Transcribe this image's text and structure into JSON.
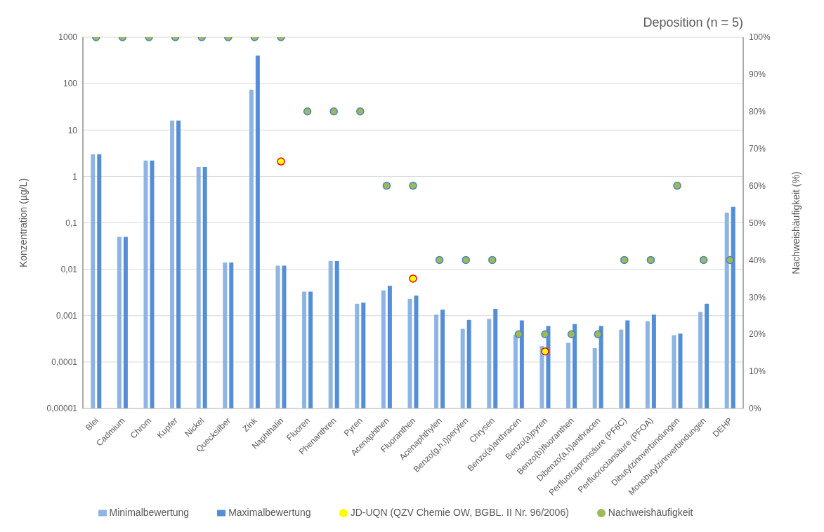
{
  "chart_data": {
    "type": "bar",
    "title": "Deposition (n = 5)",
    "ylabel": "Konzentration (µg/L)",
    "y2label": "Nachweishäufigkeit (%)",
    "categories": [
      "Blei",
      "Cadmium",
      "Chrom",
      "Kupfer",
      "Nickel",
      "Quecksilber",
      "Zink",
      "Naphthalin",
      "Fluoren",
      "Phenanthren",
      "Pyren",
      "Acenaphthen",
      "Fluoranthen",
      "Acenaphthylen",
      "Benzo(g,h,i)perylen",
      "Chrysen",
      "Benzo(a)anthracen",
      "Benzo(a)pyren",
      "Benzo(b)fluoranthen",
      "Dibenzo(a,h)anthracen",
      "Perfluorcapronsäure (PF6C)",
      "Perfluoroctansäure (PFOA)",
      "Dibutylzinnverbindungen",
      "Monobutylzinnverbindungen",
      "DEHP"
    ],
    "series": [
      {
        "name": "Minimalbewertung",
        "color": "#8eb4e3",
        "values": [
          3,
          0.05,
          2.2,
          16,
          1.6,
          0.014,
          74,
          0.012,
          0.0033,
          0.015,
          0.0018,
          0.0035,
          0.0023,
          0.00105,
          0.00052,
          0.00085,
          0.00039,
          0.00022,
          0.00026,
          0.0002,
          0.0005,
          0.00076,
          0.00038,
          0.0012,
          0.166
        ]
      },
      {
        "name": "Maximalbewertung",
        "color": "#558ed5",
        "values": [
          3,
          0.05,
          2.2,
          16,
          1.6,
          0.014,
          400,
          0.012,
          0.0033,
          0.015,
          0.0019,
          0.0044,
          0.0027,
          0.00135,
          0.00081,
          0.0014,
          0.00079,
          0.0006,
          0.00066,
          0.0006,
          0.00079,
          0.00105,
          0.00041,
          0.0018,
          0.22
        ]
      },
      {
        "name": "JD-UQN (QZV Chemie OW, BGBL. II Nr. 96/2006)",
        "type": "scatter",
        "color": "#ffff00",
        "values": [
          null,
          null,
          null,
          null,
          null,
          null,
          null,
          2.1,
          null,
          null,
          null,
          null,
          0.0063,
          null,
          null,
          null,
          null,
          0.00017,
          null,
          null,
          null,
          null,
          null,
          null,
          null
        ]
      },
      {
        "name": "Nachweishäufigkeit",
        "type": "scatter",
        "axis": "y2",
        "color": "#9bbb59",
        "values": [
          100,
          100,
          100,
          100,
          100,
          100,
          100,
          100,
          80,
          80,
          80,
          60,
          60,
          40,
          40,
          40,
          20,
          20,
          20,
          20,
          40,
          40,
          60,
          40,
          40
        ]
      }
    ],
    "log": "y",
    "ylim": [
      1e-05,
      1000
    ],
    "yticks": [
      {
        "value": 1e-05,
        "label": "0,00001"
      },
      {
        "value": 0.0001,
        "label": "0,0001"
      },
      {
        "value": 0.001,
        "label": "0,001"
      },
      {
        "value": 0.01,
        "label": "0,01"
      },
      {
        "value": 0.1,
        "label": "0,1"
      },
      1,
      10,
      100,
      1000
    ],
    "y2lim": [
      0,
      100
    ],
    "y2ticks": [
      {
        "value": 0,
        "label": "0%"
      },
      {
        "value": 10,
        "label": "10%"
      },
      {
        "value": 20,
        "label": "20%"
      },
      {
        "value": 30,
        "label": "30%"
      },
      {
        "value": 40,
        "label": "40%"
      },
      {
        "value": 50,
        "label": "50%"
      },
      {
        "value": 60,
        "label": "60%"
      },
      {
        "value": 70,
        "label": "70%"
      },
      {
        "value": 80,
        "label": "80%"
      },
      {
        "value": 90,
        "label": "90%"
      },
      {
        "value": 100,
        "label": "100%"
      }
    ],
    "grid": "y",
    "legend": "bottom",
    "marker": "circle"
  }
}
